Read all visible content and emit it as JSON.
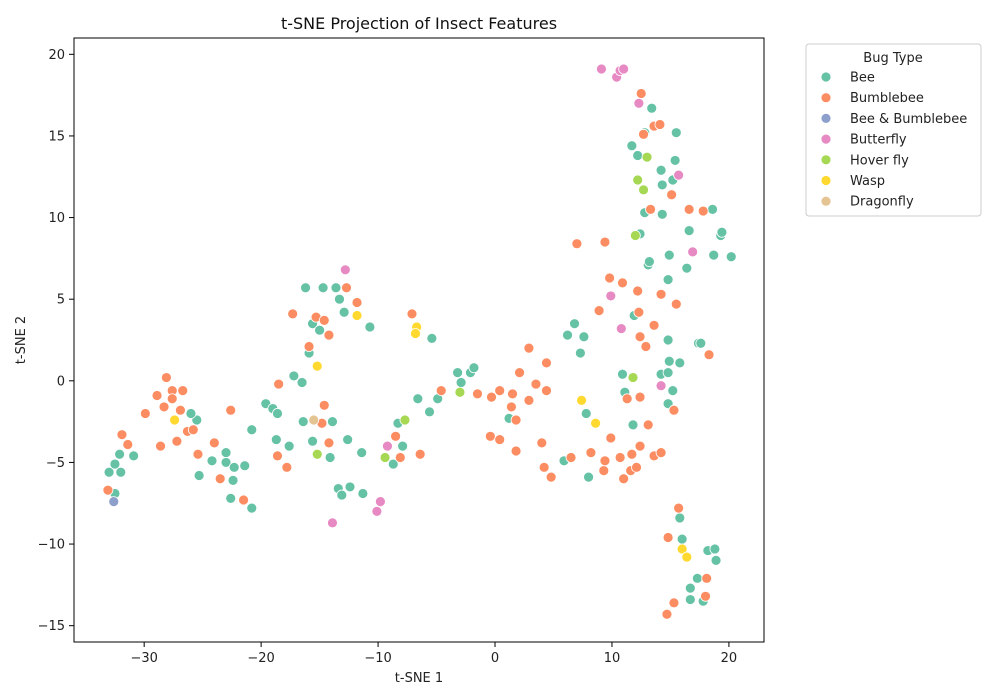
{
  "chart_data": {
    "type": "scatter",
    "title": "t-SNE Projection of Insect Features",
    "xlabel": "t-SNE 1",
    "ylabel": "t-SNE 2",
    "xlim": [
      -36,
      23
    ],
    "ylim": [
      -16,
      21
    ],
    "xticks": [
      -30,
      -20,
      -10,
      0,
      10,
      20
    ],
    "yticks": [
      -15,
      -10,
      -5,
      0,
      5,
      10,
      15,
      20
    ],
    "grid": false,
    "legend": {
      "title": "Bug Type",
      "placement": "outside-top-right"
    },
    "series": [
      {
        "name": "Bee",
        "color": "#66c2a5",
        "points": [
          [
            -33,
            -5.6
          ],
          [
            -32.5,
            -5.1
          ],
          [
            -32.1,
            -4.5
          ],
          [
            -32,
            -5.6
          ],
          [
            -30.9,
            -4.6
          ],
          [
            -32.5,
            -6.9
          ],
          [
            -25.5,
            -2.4
          ],
          [
            -26,
            -2
          ],
          [
            -25.3,
            -5.8
          ],
          [
            -24.2,
            -4.9
          ],
          [
            -23,
            -4.4
          ],
          [
            -23,
            -5
          ],
          [
            -22.3,
            -5.3
          ],
          [
            -22.4,
            -6.1
          ],
          [
            -22.6,
            -7.2
          ],
          [
            -21.4,
            -5.2
          ],
          [
            -20.8,
            -3
          ],
          [
            -20.8,
            -7.8
          ],
          [
            -19.6,
            -1.4
          ],
          [
            -19,
            -1.7
          ],
          [
            -18.6,
            -2
          ],
          [
            -18.7,
            -3.6
          ],
          [
            -17.6,
            -4
          ],
          [
            -17.2,
            0.3
          ],
          [
            -16.5,
            -0.1
          ],
          [
            -16.4,
            -2.5
          ],
          [
            -16.2,
            5.7
          ],
          [
            -15.9,
            1.7
          ],
          [
            -15.6,
            3.5
          ],
          [
            -15.6,
            -3.7
          ],
          [
            -15,
            3.1
          ],
          [
            -14.7,
            5.7
          ],
          [
            -14.1,
            -4.7
          ],
          [
            -13.9,
            -2.5
          ],
          [
            -13.6,
            5.7
          ],
          [
            -13.4,
            -6.6
          ],
          [
            -13.3,
            5
          ],
          [
            -13.1,
            -7
          ],
          [
            -12.9,
            4.2
          ],
          [
            -12.6,
            -3.6
          ],
          [
            -12.4,
            -6.5
          ],
          [
            -11.3,
            -6.9
          ],
          [
            -11.4,
            -4.4
          ],
          [
            -10.7,
            3.3
          ],
          [
            -8.7,
            -5.1
          ],
          [
            -8.3,
            -2.6
          ],
          [
            -7.9,
            -4
          ],
          [
            -6.6,
            -1.1
          ],
          [
            -5.6,
            -1.9
          ],
          [
            -5.4,
            2.6
          ],
          [
            -4.9,
            -1.1
          ],
          [
            -3.2,
            0.5
          ],
          [
            -2.9,
            -0.1
          ],
          [
            -2.1,
            0.5
          ],
          [
            -1.8,
            0.8
          ],
          [
            1.2,
            -2.3
          ],
          [
            5.9,
            -4.9
          ],
          [
            6.2,
            2.8
          ],
          [
            6.8,
            3.5
          ],
          [
            7.3,
            1.7
          ],
          [
            7.6,
            2.7
          ],
          [
            7.8,
            -2
          ],
          [
            8,
            -5.9
          ],
          [
            10.9,
            0.4
          ],
          [
            11.1,
            -0.7
          ],
          [
            11.7,
            14.4
          ],
          [
            11.8,
            -2.7
          ],
          [
            11.9,
            4
          ],
          [
            12.2,
            13.8
          ],
          [
            12.4,
            9
          ],
          [
            12.8,
            10.3
          ],
          [
            12.8,
            15.2
          ],
          [
            13.1,
            7.1
          ],
          [
            13.2,
            7.3
          ],
          [
            13.4,
            16.7
          ],
          [
            14.2,
            12.9
          ],
          [
            14.2,
            0.4
          ],
          [
            14.3,
            12
          ],
          [
            14.3,
            10.2
          ],
          [
            14.8,
            0.5
          ],
          [
            14.8,
            -1.4
          ],
          [
            14.8,
            2.5
          ],
          [
            14.8,
            6.2
          ],
          [
            14.9,
            1.2
          ],
          [
            14.9,
            7.7
          ],
          [
            15.2,
            12.3
          ],
          [
            15.2,
            -0.6
          ],
          [
            15.4,
            13.5
          ],
          [
            15.5,
            15.2
          ],
          [
            15.8,
            -8.4
          ],
          [
            15.8,
            1.1
          ],
          [
            16,
            -9.7
          ],
          [
            16.4,
            6.9
          ],
          [
            16.6,
            9.2
          ],
          [
            16.7,
            -13.4
          ],
          [
            16.7,
            -12.7
          ],
          [
            17.3,
            -12.1
          ],
          [
            17.4,
            2.3
          ],
          [
            17.6,
            2.3
          ],
          [
            17.8,
            -13.5
          ],
          [
            18.2,
            -10.4
          ],
          [
            18.6,
            10.5
          ],
          [
            18.7,
            7.7
          ],
          [
            18.8,
            -10.3
          ],
          [
            18.9,
            -11
          ],
          [
            19.3,
            8.9
          ],
          [
            19.4,
            9.1
          ],
          [
            20.2,
            7.6
          ]
        ]
      },
      {
        "name": "Bumblebee",
        "color": "#fc8d62",
        "points": [
          [
            -33.1,
            -6.7
          ],
          [
            -31.9,
            -3.3
          ],
          [
            -31.4,
            -3.9
          ],
          [
            -29.9,
            -2
          ],
          [
            -28.9,
            -0.9
          ],
          [
            -28.6,
            -4
          ],
          [
            -28.3,
            -1.6
          ],
          [
            -28.1,
            0.2
          ],
          [
            -27.6,
            -0.6
          ],
          [
            -27.6,
            -1.1
          ],
          [
            -27.2,
            -3.7
          ],
          [
            -26.9,
            -1.8
          ],
          [
            -26.7,
            -0.6
          ],
          [
            -26.3,
            -3.1
          ],
          [
            -25.8,
            -3
          ],
          [
            -25.4,
            -4.5
          ],
          [
            -24,
            -3.8
          ],
          [
            -23.5,
            -6
          ],
          [
            -22.6,
            -1.8
          ],
          [
            -21.5,
            -7.3
          ],
          [
            -18.6,
            -4.6
          ],
          [
            -18.5,
            -0.2
          ],
          [
            -17.8,
            -5.3
          ],
          [
            -17.3,
            4.1
          ],
          [
            -15.9,
            2.1
          ],
          [
            -15.3,
            3.9
          ],
          [
            -14.8,
            -2.6
          ],
          [
            -14.6,
            -1.5
          ],
          [
            -14.6,
            3.7
          ],
          [
            -14.2,
            2.8
          ],
          [
            -14.2,
            -3.8
          ],
          [
            -12.7,
            5.7
          ],
          [
            -11.8,
            4.8
          ],
          [
            -8.5,
            -3.4
          ],
          [
            -8.1,
            -4.7
          ],
          [
            -7.1,
            4.1
          ],
          [
            -6.4,
            -4.5
          ],
          [
            -4.6,
            -0.6
          ],
          [
            -1.5,
            -0.8
          ],
          [
            -0.4,
            -3.4
          ],
          [
            -0.3,
            -1
          ],
          [
            0.4,
            -0.6
          ],
          [
            0.4,
            -3.6
          ],
          [
            1.4,
            -1.6
          ],
          [
            1.5,
            -0.8
          ],
          [
            1.8,
            -2.4
          ],
          [
            1.8,
            -4.3
          ],
          [
            2.1,
            0.5
          ],
          [
            2.9,
            2
          ],
          [
            2.9,
            -1.2
          ],
          [
            3.5,
            -0.2
          ],
          [
            4,
            -3.8
          ],
          [
            4.2,
            -5.3
          ],
          [
            4.4,
            1.1
          ],
          [
            4.4,
            -0.6
          ],
          [
            4.8,
            -5.9
          ],
          [
            6.5,
            -4.7
          ],
          [
            7,
            8.4
          ],
          [
            8.2,
            -4.4
          ],
          [
            8.9,
            4.3
          ],
          [
            9.3,
            -5.5
          ],
          [
            9.4,
            -4.9
          ],
          [
            9.4,
            8.5
          ],
          [
            9.8,
            6.3
          ],
          [
            9.9,
            -3.5
          ],
          [
            10.7,
            -4.7
          ],
          [
            10.9,
            6
          ],
          [
            11,
            -6
          ],
          [
            11.3,
            -1.1
          ],
          [
            11.6,
            -5.5
          ],
          [
            11.7,
            -4.5
          ],
          [
            12.1,
            -5.3
          ],
          [
            12.2,
            5.5
          ],
          [
            12.3,
            4.2
          ],
          [
            12.4,
            2.7
          ],
          [
            12.4,
            -1
          ],
          [
            12.4,
            -4
          ],
          [
            12.5,
            17.6
          ],
          [
            12.7,
            15.1
          ],
          [
            12.9,
            2.1
          ],
          [
            13.1,
            -2.7
          ],
          [
            13.3,
            10.5
          ],
          [
            13.6,
            -4.6
          ],
          [
            13.6,
            3.4
          ],
          [
            13.6,
            15.6
          ],
          [
            14.1,
            15.7
          ],
          [
            14.2,
            -4.4
          ],
          [
            14.2,
            5.3
          ],
          [
            14.7,
            -14.3
          ],
          [
            14.8,
            -9.6
          ],
          [
            15.1,
            11.4
          ],
          [
            15.3,
            -13.6
          ],
          [
            15.3,
            -1.8
          ],
          [
            15.5,
            4.7
          ],
          [
            15.7,
            -7.8
          ],
          [
            16.6,
            10.5
          ],
          [
            17.8,
            10.4
          ],
          [
            18,
            -13.2
          ],
          [
            18.1,
            -12.1
          ],
          [
            18.3,
            1.6
          ]
        ]
      },
      {
        "name": "Bee & Bumblebee",
        "color": "#8da0cb",
        "points": [
          [
            -32.6,
            -7.4
          ]
        ]
      },
      {
        "name": "Butterfly",
        "color": "#e78ac3",
        "points": [
          [
            -12.8,
            6.8
          ],
          [
            -13.9,
            -8.7
          ],
          [
            -10.1,
            -8
          ],
          [
            -9.8,
            -7.4
          ],
          [
            -9.2,
            -4
          ],
          [
            9.1,
            19.1
          ],
          [
            10.4,
            18.6
          ],
          [
            10.7,
            19
          ],
          [
            11,
            19.1
          ],
          [
            9.9,
            5.2
          ],
          [
            10.8,
            3.2
          ],
          [
            12.3,
            17
          ],
          [
            14.2,
            -0.3
          ],
          [
            15.7,
            12.6
          ],
          [
            16.9,
            7.9
          ]
        ]
      },
      {
        "name": "Hover fly",
        "color": "#a6d854",
        "points": [
          [
            -15.2,
            -4.5
          ],
          [
            -9.4,
            -4.7
          ],
          [
            -7.7,
            -2.4
          ],
          [
            -3,
            -0.7
          ],
          [
            11.8,
            0.2
          ],
          [
            12,
            8.9
          ],
          [
            12.2,
            12.3
          ],
          [
            12.7,
            11.7
          ],
          [
            13,
            13.7
          ]
        ]
      },
      {
        "name": "Wasp",
        "color": "#ffd92f",
        "points": [
          [
            -27.4,
            -2.4
          ],
          [
            -15.2,
            0.9
          ],
          [
            -11.8,
            4
          ],
          [
            -6.7,
            3.3
          ],
          [
            -6.8,
            2.9
          ],
          [
            7.4,
            -1.2
          ],
          [
            8.6,
            -2.6
          ],
          [
            16,
            -10.3
          ],
          [
            16.4,
            -10.8
          ]
        ]
      },
      {
        "name": "Dragonfly",
        "color": "#e5c494",
        "points": [
          [
            -15.5,
            -2.4
          ]
        ]
      }
    ]
  }
}
